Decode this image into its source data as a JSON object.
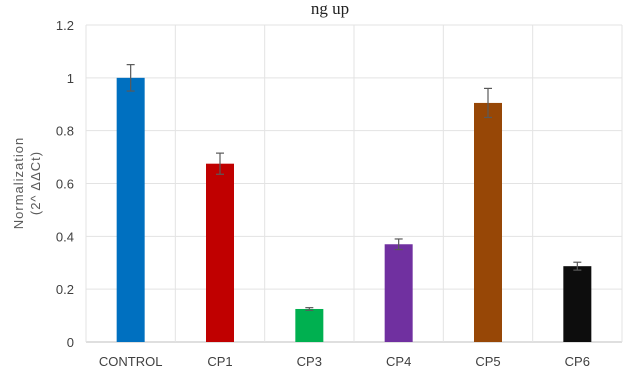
{
  "header_fragment": "ng up",
  "chart_data": {
    "type": "bar",
    "title": "",
    "xlabel": "",
    "ylabel_lines": [
      "Normalization",
      "(2^ ΔΔCt)"
    ],
    "categories": [
      "CONTROL",
      "CP1",
      "CP3",
      "CP4",
      "CP5",
      "CP6"
    ],
    "values": [
      1.0,
      0.675,
      0.125,
      0.37,
      0.905,
      0.287
    ],
    "errors": [
      0.05,
      0.04,
      0.005,
      0.02,
      0.055,
      0.015
    ],
    "colors": [
      "#0070C0",
      "#C00000",
      "#00B050",
      "#7030A0",
      "#974706",
      "#0D0D0D"
    ],
    "ylim": [
      0,
      1.2
    ],
    "yticks": [
      0,
      0.2,
      0.4,
      0.6,
      0.8,
      1,
      1.2
    ],
    "ytick_labels": [
      "0",
      "0.2",
      "0.4",
      "0.6",
      "0.8",
      "1",
      "1.2"
    ],
    "grid": true,
    "legend": "none"
  }
}
